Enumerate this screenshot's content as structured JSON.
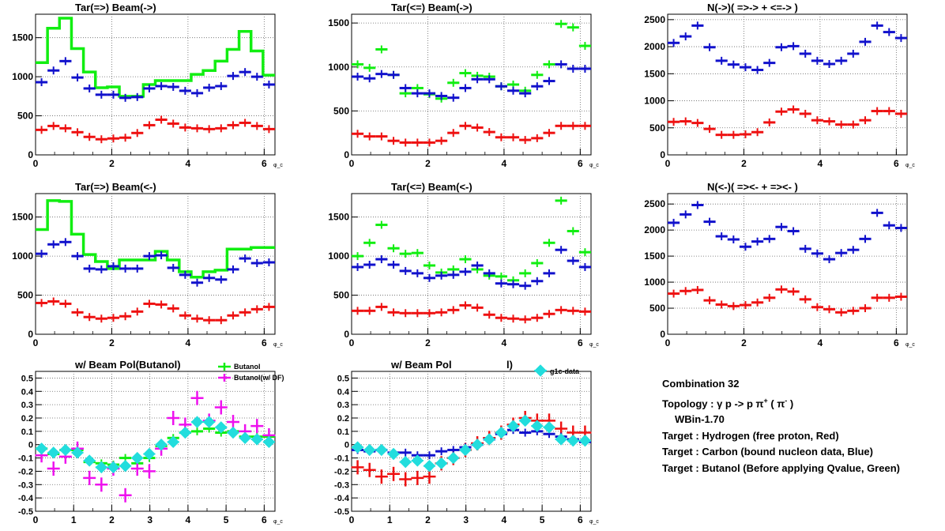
{
  "colors": {
    "red": "#ee1111",
    "blue": "#1111cc",
    "green": "#11ee11",
    "magenta": "#ee11ee",
    "cyan": "#22dddd",
    "grid": "#666666"
  },
  "x_axis": {
    "unit_label": "φ_c",
    "ticks": [
      "0",
      "2",
      "4",
      "6"
    ],
    "ticks_bottom": [
      "0",
      "1",
      "2",
      "3",
      "4",
      "5",
      "6"
    ]
  },
  "chart_data": [
    {
      "type": "scatter",
      "title": "Tar(=>) Beam(->)",
      "xlim": [
        0,
        6.283
      ],
      "ylim": [
        0,
        1800
      ],
      "yticks": [
        "0",
        "500",
        "1000",
        "1500"
      ],
      "grid": true,
      "x": [
        0.157,
        0.471,
        0.785,
        1.1,
        1.414,
        1.728,
        2.042,
        2.356,
        2.67,
        2.985,
        3.299,
        3.613,
        3.927,
        4.241,
        4.555,
        4.869,
        5.184,
        5.498,
        5.812,
        6.126
      ],
      "series": [
        {
          "color_key": "green",
          "style": "histogram",
          "values": [
            1180,
            1620,
            1750,
            1360,
            1060,
            860,
            870,
            750,
            750,
            900,
            950,
            950,
            950,
            1030,
            1080,
            1200,
            1350,
            1580,
            1330,
            1020
          ]
        },
        {
          "color_key": "blue",
          "style": "markers",
          "values": [
            930,
            1080,
            1200,
            990,
            850,
            770,
            770,
            730,
            740,
            850,
            880,
            870,
            820,
            790,
            860,
            880,
            1010,
            1060,
            1000,
            900
          ]
        },
        {
          "color_key": "red",
          "style": "markers",
          "values": [
            320,
            370,
            340,
            290,
            230,
            200,
            210,
            220,
            280,
            380,
            450,
            400,
            350,
            340,
            330,
            340,
            380,
            410,
            370,
            330
          ]
        }
      ]
    },
    {
      "type": "scatter",
      "title": "Tar(<=) Beam(->)",
      "xlim": [
        0,
        6.283
      ],
      "ylim": [
        0,
        1600
      ],
      "yticks": [
        "0",
        "500",
        "1000",
        "1500"
      ],
      "grid": true,
      "x": [
        0.157,
        0.471,
        0.785,
        1.1,
        1.414,
        1.728,
        2.042,
        2.356,
        2.67,
        2.985,
        3.299,
        3.613,
        3.927,
        4.241,
        4.555,
        4.869,
        5.184,
        5.498,
        5.812,
        6.126
      ],
      "series": [
        {
          "color_key": "green",
          "style": "markers",
          "values": [
            1030,
            990,
            1200,
            910,
            700,
            760,
            690,
            640,
            820,
            930,
            900,
            890,
            780,
            800,
            730,
            910,
            1030,
            1490,
            1450,
            1240
          ]
        },
        {
          "color_key": "blue",
          "style": "markers",
          "values": [
            890,
            870,
            920,
            910,
            760,
            700,
            700,
            670,
            650,
            760,
            860,
            860,
            780,
            730,
            700,
            780,
            840,
            1030,
            980,
            980
          ]
        },
        {
          "color_key": "red",
          "style": "markers",
          "values": [
            240,
            210,
            210,
            160,
            140,
            140,
            140,
            160,
            250,
            330,
            310,
            260,
            200,
            200,
            170,
            190,
            250,
            330,
            330,
            330
          ]
        }
      ]
    },
    {
      "type": "scatter",
      "title": "N(->)( =>-> + <=-> )",
      "xlim": [
        0,
        6.283
      ],
      "ylim": [
        0,
        2600
      ],
      "yticks": [
        "0",
        "500",
        "1000",
        "1500",
        "2000",
        "2500"
      ],
      "grid": true,
      "x": [
        0.157,
        0.471,
        0.785,
        1.1,
        1.414,
        1.728,
        2.042,
        2.356,
        2.67,
        2.985,
        3.299,
        3.613,
        3.927,
        4.241,
        4.555,
        4.869,
        5.184,
        5.498,
        5.812,
        6.126
      ],
      "series": [
        {
          "color_key": "blue",
          "style": "markers",
          "values": [
            2070,
            2190,
            2390,
            1990,
            1740,
            1670,
            1620,
            1570,
            1700,
            1990,
            2010,
            1870,
            1740,
            1680,
            1740,
            1870,
            2090,
            2390,
            2270,
            2160
          ]
        },
        {
          "color_key": "red",
          "style": "markers",
          "values": [
            610,
            620,
            590,
            480,
            370,
            370,
            380,
            420,
            600,
            800,
            840,
            760,
            640,
            620,
            560,
            560,
            640,
            810,
            810,
            760
          ]
        }
      ]
    },
    {
      "type": "scatter",
      "title": "Tar(=>) Beam(<-)",
      "xlim": [
        0,
        6.283
      ],
      "ylim": [
        0,
        1800
      ],
      "yticks": [
        "0",
        "500",
        "1000",
        "1500"
      ],
      "grid": true,
      "x": [
        0.157,
        0.471,
        0.785,
        1.1,
        1.414,
        1.728,
        2.042,
        2.356,
        2.67,
        2.985,
        3.299,
        3.613,
        3.927,
        4.241,
        4.555,
        4.869,
        5.184,
        5.498,
        5.812,
        6.126
      ],
      "series": [
        {
          "color_key": "green",
          "style": "histogram",
          "values": [
            1340,
            1710,
            1700,
            1280,
            1020,
            930,
            840,
            950,
            950,
            950,
            1060,
            950,
            800,
            730,
            800,
            820,
            1090,
            1090,
            1110,
            1110
          ]
        },
        {
          "color_key": "blue",
          "style": "markers",
          "values": [
            1030,
            1150,
            1180,
            1000,
            840,
            830,
            870,
            840,
            840,
            1000,
            1010,
            850,
            760,
            660,
            720,
            700,
            830,
            970,
            910,
            920
          ]
        },
        {
          "color_key": "red",
          "style": "markers",
          "values": [
            400,
            420,
            390,
            280,
            220,
            200,
            210,
            230,
            290,
            390,
            380,
            330,
            240,
            200,
            180,
            180,
            240,
            280,
            320,
            350
          ]
        }
      ]
    },
    {
      "type": "scatter",
      "title": "Tar(<=) Beam(<-)",
      "xlim": [
        0,
        6.283
      ],
      "ylim": [
        0,
        1800
      ],
      "yticks": [
        "0",
        "500",
        "1000",
        "1500"
      ],
      "grid": true,
      "x": [
        0.157,
        0.471,
        0.785,
        1.1,
        1.414,
        1.728,
        2.042,
        2.356,
        2.67,
        2.985,
        3.299,
        3.613,
        3.927,
        4.241,
        4.555,
        4.869,
        5.184,
        5.498,
        5.812,
        6.126
      ],
      "series": [
        {
          "color_key": "green",
          "style": "markers",
          "values": [
            1000,
            1170,
            1400,
            1100,
            1030,
            1040,
            880,
            790,
            830,
            960,
            830,
            750,
            740,
            690,
            780,
            910,
            1170,
            1710,
            1320,
            1050
          ]
        },
        {
          "color_key": "blue",
          "style": "markers",
          "values": [
            860,
            890,
            960,
            890,
            810,
            780,
            720,
            750,
            760,
            800,
            880,
            780,
            650,
            640,
            620,
            680,
            780,
            1080,
            940,
            860
          ]
        },
        {
          "color_key": "red",
          "style": "markers",
          "values": [
            300,
            300,
            350,
            280,
            270,
            270,
            270,
            280,
            310,
            370,
            340,
            250,
            210,
            200,
            190,
            210,
            260,
            310,
            300,
            290
          ]
        }
      ]
    },
    {
      "type": "scatter",
      "title": "N(<-)( =><- + =><- )",
      "xlim": [
        0,
        6.283
      ],
      "ylim": [
        0,
        2700
      ],
      "yticks": [
        "0",
        "500",
        "1000",
        "1500",
        "2000",
        "2500"
      ],
      "grid": true,
      "x": [
        0.157,
        0.471,
        0.785,
        1.1,
        1.414,
        1.728,
        2.042,
        2.356,
        2.67,
        2.985,
        3.299,
        3.613,
        3.927,
        4.241,
        4.555,
        4.869,
        5.184,
        5.498,
        5.812,
        6.126
      ],
      "series": [
        {
          "color_key": "blue",
          "style": "markers",
          "values": [
            2140,
            2300,
            2480,
            2160,
            1880,
            1820,
            1680,
            1780,
            1830,
            2060,
            1980,
            1640,
            1550,
            1440,
            1560,
            1620,
            1830,
            2330,
            2090,
            2040
          ]
        },
        {
          "color_key": "red",
          "style": "markers",
          "values": [
            780,
            830,
            850,
            650,
            570,
            540,
            560,
            610,
            700,
            860,
            820,
            670,
            520,
            480,
            420,
            450,
            500,
            700,
            700,
            720
          ]
        }
      ]
    },
    {
      "type": "scatter",
      "title": "w/ Beam Pol(Butanol)",
      "xlim": [
        0,
        6.283
      ],
      "ylim": [
        -0.5,
        0.55
      ],
      "yticks": [
        "-0.5",
        "-0.4",
        "-0.3",
        "-0.2",
        "-0.1",
        "0",
        "0.1",
        "0.2",
        "0.3",
        "0.4",
        "0.5"
      ],
      "grid": true,
      "legend": {
        "position": "top-right",
        "entries": [
          "Butanol",
          "Butanol(w/ DF)"
        ]
      },
      "x": [
        0.157,
        0.471,
        0.785,
        1.1,
        1.414,
        1.728,
        2.042,
        2.356,
        2.67,
        2.985,
        3.299,
        3.613,
        3.927,
        4.241,
        4.555,
        4.869,
        5.184,
        5.498,
        5.812,
        6.126
      ],
      "series": [
        {
          "name": "Butanol",
          "color_key": "green",
          "style": "markers",
          "values": [
            -0.03,
            -0.07,
            -0.04,
            -0.04,
            -0.13,
            -0.14,
            -0.15,
            -0.1,
            -0.14,
            -0.1,
            -0.01,
            0.05,
            0.09,
            0.1,
            0.12,
            0.09,
            0.1,
            0.06,
            0.06,
            0.06
          ]
        },
        {
          "name": "Butanol(w/ DF)",
          "color_key": "magenta",
          "style": "cross",
          "values": [
            -0.08,
            -0.18,
            -0.09,
            -0.03,
            -0.25,
            -0.3,
            -0.18,
            -0.38,
            -0.18,
            -0.2,
            -0.03,
            0.2,
            0.15,
            0.35,
            0.18,
            0.28,
            0.17,
            0.1,
            0.14,
            0.07
          ]
        },
        {
          "color_key": "cyan",
          "style": "diamond",
          "values": [
            -0.03,
            -0.06,
            -0.04,
            -0.06,
            -0.12,
            -0.17,
            -0.17,
            -0.16,
            -0.1,
            -0.07,
            0.0,
            0.02,
            0.09,
            0.17,
            0.17,
            0.13,
            0.09,
            0.05,
            0.04,
            0.02
          ]
        }
      ]
    },
    {
      "type": "scatter",
      "title": "w/ Beam Pol",
      "title_tail": "l)",
      "xlim": [
        0,
        6.283
      ],
      "ylim": [
        -0.5,
        0.55
      ],
      "yticks": [
        "-0.5",
        "-0.4",
        "-0.3",
        "-0.2",
        "-0.1",
        "0",
        "0.1",
        "0.2",
        "0.3",
        "0.4",
        "0.5"
      ],
      "grid": true,
      "legend": {
        "position": "top-right",
        "entries": [
          "g1c-data"
        ]
      },
      "x": [
        0.157,
        0.471,
        0.785,
        1.1,
        1.414,
        1.728,
        2.042,
        2.356,
        2.67,
        2.985,
        3.299,
        3.613,
        3.927,
        4.241,
        4.555,
        4.869,
        5.184,
        5.498,
        5.812,
        6.126
      ],
      "series": [
        {
          "color_key": "red",
          "style": "cross",
          "values": [
            -0.17,
            -0.19,
            -0.24,
            -0.22,
            -0.26,
            -0.25,
            -0.24,
            -0.14,
            -0.1,
            -0.04,
            0.01,
            0.05,
            0.09,
            0.15,
            0.2,
            0.18,
            0.18,
            0.12,
            0.09,
            0.09
          ]
        },
        {
          "color_key": "blue",
          "style": "markers",
          "values": [
            -0.04,
            -0.05,
            -0.04,
            -0.06,
            -0.06,
            -0.08,
            -0.08,
            -0.05,
            -0.04,
            -0.02,
            0.0,
            0.04,
            0.08,
            0.11,
            0.09,
            0.1,
            0.08,
            0.06,
            0.04,
            0.02
          ]
        },
        {
          "name": "g1c-data",
          "color_key": "cyan",
          "style": "diamond",
          "values": [
            -0.02,
            -0.04,
            -0.04,
            -0.07,
            -0.13,
            -0.12,
            -0.16,
            -0.14,
            -0.1,
            -0.04,
            0.0,
            0.04,
            0.09,
            0.14,
            0.18,
            0.14,
            0.13,
            0.04,
            0.03,
            0.03
          ]
        }
      ]
    }
  ],
  "info": {
    "line1": "Combination 32",
    "topology_prefix": "Topology :  γ p -> p  π",
    "topology_sup1": "+",
    "topology_mid": " ( π",
    "topology_sup2": "-",
    "topology_end": " )",
    "wbin": "WBin-1.70",
    "target1": "Target : Hydrogen (free proton, Red)",
    "target2": "Target : Carbon (bound nucleon data, Blue)",
    "target3": "Target : Butanol (Before applying Qvalue, Green)"
  }
}
